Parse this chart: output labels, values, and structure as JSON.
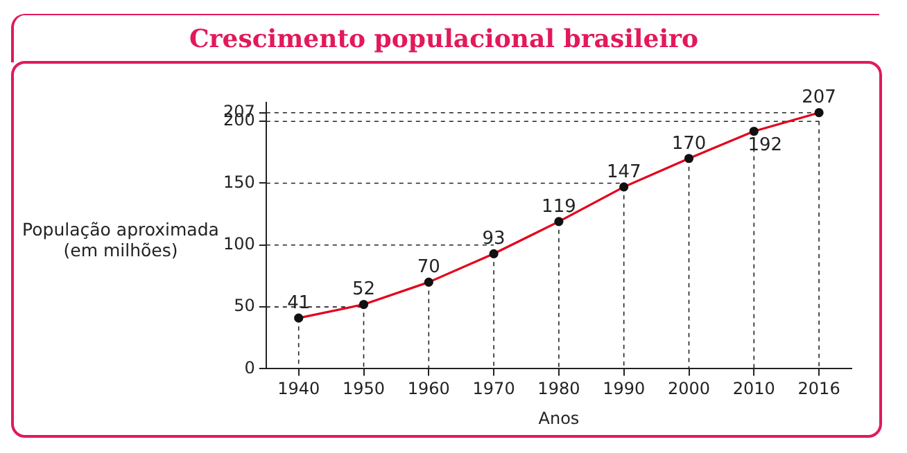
{
  "chart_data": {
    "type": "line",
    "title": "Crescimento populacional brasileiro",
    "xlabel": "Anos",
    "ylabel": "População aproximada\n(em milhões)",
    "categories": [
      "1940",
      "1950",
      "1960",
      "1970",
      "1980",
      "1990",
      "2000",
      "2010",
      "2016"
    ],
    "series": [
      {
        "color": "#e3001b",
        "values": [
          41,
          52,
          70,
          93,
          119,
          147,
          170,
          192,
          207
        ]
      }
    ],
    "ylim": [
      0,
      215
    ],
    "yticks": [
      0,
      50,
      100,
      150,
      200,
      207
    ],
    "grid": true,
    "data_labels": true,
    "marker": "circle",
    "line_style": "solid",
    "legend": false
  }
}
